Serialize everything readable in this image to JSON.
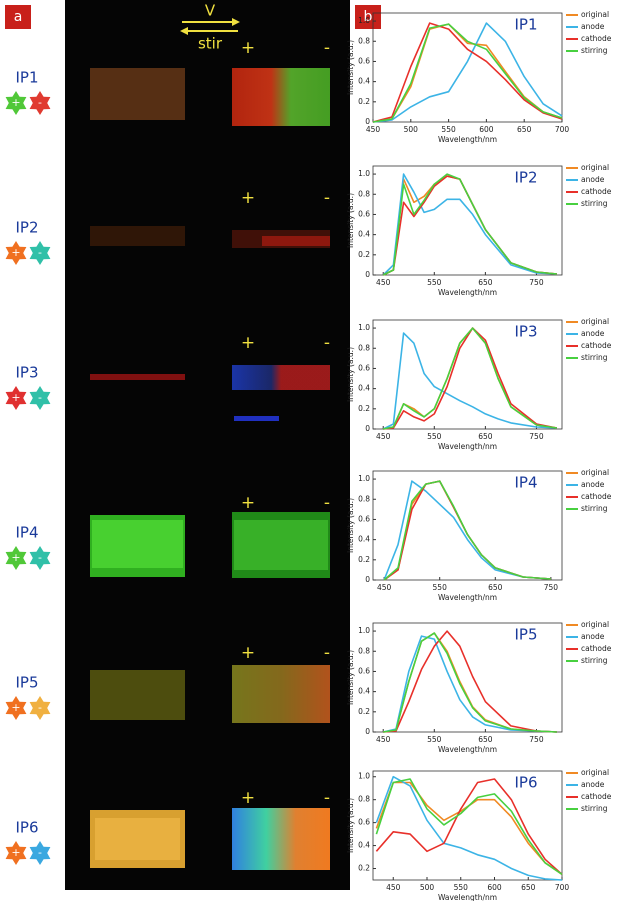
{
  "panel_labels": [
    "a",
    "b"
  ],
  "direction_labels": [
    "V",
    "stir"
  ],
  "samples": [
    "IP1",
    "IP2",
    "IP3",
    "IP4",
    "IP5",
    "IP6"
  ],
  "electrode_signs": [
    "+",
    "-"
  ],
  "chart_data": [
    {
      "type": "line",
      "annotation": "IP1",
      "xlabel": "Wavelength/nm",
      "ylabel": "Intensity (a.u.)",
      "legend": "outside-right",
      "xlim": [
        450,
        700
      ],
      "ylim": [
        0,
        1.08
      ],
      "xticks": [
        450,
        500,
        550,
        600,
        650,
        700
      ],
      "yticks": [
        0,
        0.2,
        0.4,
        0.6,
        0.8,
        {
          "value": 1,
          "label": "1.0"
        }
      ],
      "x": [
        450,
        475,
        500,
        525,
        550,
        575,
        600,
        625,
        650,
        675,
        700
      ],
      "series": [
        {
          "name": "original",
          "color": "#f08a24",
          "values": [
            0,
            0.03,
            0.35,
            0.92,
            0.97,
            0.78,
            0.76,
            0.5,
            0.25,
            0.1,
            0.04
          ]
        },
        {
          "name": "anode",
          "color": "#3cb4e6",
          "values": [
            0,
            0.02,
            0.15,
            0.25,
            0.3,
            0.6,
            0.98,
            0.8,
            0.45,
            0.18,
            0.06
          ]
        },
        {
          "name": "cathode",
          "color": "#e8302a",
          "values": [
            0,
            0.05,
            0.55,
            0.98,
            0.92,
            0.72,
            0.6,
            0.42,
            0.22,
            0.09,
            0.03
          ]
        },
        {
          "name": "stirring",
          "color": "#48d040",
          "values": [
            0,
            0.03,
            0.38,
            0.93,
            0.97,
            0.8,
            0.72,
            0.48,
            0.24,
            0.1,
            0.04
          ]
        }
      ]
    },
    {
      "type": "line",
      "annotation": "IP2",
      "xlabel": "Wavelength/nm",
      "ylabel": "Intensity (a.u.)",
      "legend": "outside-right",
      "xlim": [
        430,
        800
      ],
      "ylim": [
        0,
        1.08
      ],
      "xticks": [
        450,
        550,
        650,
        750
      ],
      "yticks": [
        0,
        0.2,
        0.4,
        0.6,
        0.8,
        {
          "value": 1,
          "label": "1.0"
        }
      ],
      "x": [
        450,
        470,
        490,
        510,
        530,
        550,
        575,
        600,
        625,
        650,
        700,
        750,
        790
      ],
      "series": [
        {
          "name": "original",
          "color": "#f08a24",
          "values": [
            0,
            0.05,
            0.95,
            0.72,
            0.78,
            0.9,
            0.98,
            0.95,
            0.7,
            0.45,
            0.12,
            0.03,
            0.01
          ]
        },
        {
          "name": "anode",
          "color": "#3cb4e6",
          "values": [
            0,
            0.1,
            1.0,
            0.82,
            0.62,
            0.65,
            0.75,
            0.75,
            0.6,
            0.4,
            0.1,
            0.02,
            0.01
          ]
        },
        {
          "name": "cathode",
          "color": "#e8302a",
          "values": [
            0,
            0.05,
            0.72,
            0.58,
            0.72,
            0.88,
            0.98,
            0.95,
            0.7,
            0.45,
            0.12,
            0.03,
            0.01
          ]
        },
        {
          "name": "stirring",
          "color": "#48d040",
          "values": [
            0,
            0.05,
            0.9,
            0.6,
            0.74,
            0.9,
            1.0,
            0.95,
            0.7,
            0.45,
            0.12,
            0.03,
            0.01
          ]
        }
      ]
    },
    {
      "type": "line",
      "annotation": "IP3",
      "xlabel": "Wavelength/nm",
      "ylabel": "Intensity (a.u.)",
      "legend": "outside-right",
      "xlim": [
        430,
        800
      ],
      "ylim": [
        0,
        1.08
      ],
      "xticks": [
        450,
        550,
        650,
        750
      ],
      "yticks": [
        0,
        0.2,
        0.4,
        0.6,
        0.8,
        {
          "value": 1,
          "label": "1.0"
        }
      ],
      "x": [
        450,
        470,
        490,
        510,
        530,
        550,
        575,
        600,
        625,
        650,
        675,
        700,
        750,
        790
      ],
      "series": [
        {
          "name": "original",
          "color": "#f08a24",
          "values": [
            0,
            0.02,
            0.25,
            0.2,
            0.12,
            0.2,
            0.5,
            0.85,
            1.0,
            0.85,
            0.5,
            0.22,
            0.04,
            0.01
          ]
        },
        {
          "name": "anode",
          "color": "#3cb4e6",
          "values": [
            0,
            0.05,
            0.95,
            0.85,
            0.55,
            0.42,
            0.35,
            0.28,
            0.22,
            0.15,
            0.1,
            0.06,
            0.02,
            0.01
          ]
        },
        {
          "name": "cathode",
          "color": "#e8302a",
          "values": [
            0,
            0.01,
            0.18,
            0.12,
            0.08,
            0.15,
            0.42,
            0.8,
            1.0,
            0.88,
            0.55,
            0.25,
            0.05,
            0.01
          ]
        },
        {
          "name": "stirring",
          "color": "#48d040",
          "values": [
            0,
            0.02,
            0.25,
            0.18,
            0.12,
            0.2,
            0.5,
            0.85,
            1.0,
            0.85,
            0.5,
            0.22,
            0.04,
            0.01
          ]
        }
      ]
    },
    {
      "type": "line",
      "annotation": "IP4",
      "xlabel": "Wavelength/nm",
      "ylabel": "Intensity (a.u.)",
      "legend": "outside-right",
      "xlim": [
        430,
        770
      ],
      "ylim": [
        0,
        1.08
      ],
      "xticks": [
        450,
        550,
        650,
        750
      ],
      "yticks": [
        0,
        0.2,
        0.4,
        0.6,
        0.8,
        {
          "value": 1,
          "label": "1.0"
        }
      ],
      "x": [
        450,
        475,
        500,
        525,
        550,
        575,
        600,
        625,
        650,
        700,
        750
      ],
      "series": [
        {
          "name": "original",
          "color": "#f08a24",
          "values": [
            0,
            0.1,
            0.75,
            0.95,
            0.98,
            0.72,
            0.45,
            0.25,
            0.12,
            0.03,
            0.01
          ]
        },
        {
          "name": "anode",
          "color": "#3cb4e6",
          "values": [
            0,
            0.35,
            0.98,
            0.88,
            0.75,
            0.62,
            0.4,
            0.22,
            0.1,
            0.03,
            0.01
          ]
        },
        {
          "name": "cathode",
          "color": "#e8302a",
          "values": [
            0,
            0.1,
            0.7,
            0.95,
            0.98,
            0.72,
            0.45,
            0.25,
            0.12,
            0.03,
            0.01
          ]
        },
        {
          "name": "stirring",
          "color": "#48d040",
          "values": [
            0,
            0.12,
            0.78,
            0.95,
            0.98,
            0.73,
            0.45,
            0.25,
            0.12,
            0.03,
            0.01
          ]
        }
      ]
    },
    {
      "type": "line",
      "annotation": "IP5",
      "xlabel": "Wavelength/nm",
      "ylabel": "Intensity (a.u.)",
      "legend": "outside-right",
      "xlim": [
        430,
        800
      ],
      "ylim": [
        0,
        1.08
      ],
      "xticks": [
        450,
        550,
        650,
        750
      ],
      "yticks": [
        0,
        0.2,
        0.4,
        0.6,
        0.8,
        {
          "value": 1,
          "label": "1.0"
        }
      ],
      "x": [
        450,
        475,
        500,
        525,
        550,
        575,
        600,
        625,
        650,
        700,
        750,
        790
      ],
      "series": [
        {
          "name": "original",
          "color": "#f08a24",
          "values": [
            0,
            0.02,
            0.5,
            0.9,
            0.98,
            0.8,
            0.5,
            0.25,
            0.12,
            0.03,
            0.01,
            0
          ]
        },
        {
          "name": "anode",
          "color": "#3cb4e6",
          "values": [
            0,
            0.03,
            0.6,
            0.95,
            0.92,
            0.6,
            0.32,
            0.15,
            0.07,
            0.02,
            0.01,
            0
          ]
        },
        {
          "name": "cathode",
          "color": "#e8302a",
          "values": [
            0,
            0.01,
            0.3,
            0.62,
            0.85,
            1.0,
            0.85,
            0.55,
            0.3,
            0.06,
            0.01,
            0
          ]
        },
        {
          "name": "stirring",
          "color": "#48d040",
          "values": [
            0,
            0.02,
            0.5,
            0.9,
            0.98,
            0.78,
            0.48,
            0.24,
            0.11,
            0.03,
            0.01,
            0
          ]
        }
      ]
    },
    {
      "type": "line",
      "annotation": "IP6",
      "xlabel": "Wavelength/nm",
      "ylabel": "Intensity (a.u.)",
      "legend": "outside-right",
      "xlim": [
        420,
        700
      ],
      "ylim": [
        0.1,
        1.05
      ],
      "xticks": [
        450,
        500,
        550,
        600,
        650,
        700
      ],
      "yticks": [
        0.2,
        0.4,
        0.6,
        0.8,
        {
          "value": 1,
          "label": "1.0"
        }
      ],
      "x": [
        425,
        450,
        475,
        500,
        525,
        550,
        575,
        600,
        625,
        650,
        675,
        700
      ],
      "series": [
        {
          "name": "original",
          "color": "#f08a24",
          "values": [
            0.55,
            0.95,
            0.95,
            0.75,
            0.62,
            0.7,
            0.8,
            0.8,
            0.65,
            0.42,
            0.25,
            0.15
          ]
        },
        {
          "name": "anode",
          "color": "#3cb4e6",
          "values": [
            0.6,
            1.0,
            0.92,
            0.62,
            0.42,
            0.38,
            0.32,
            0.28,
            0.2,
            0.14,
            0.11,
            0.1
          ]
        },
        {
          "name": "cathode",
          "color": "#e8302a",
          "values": [
            0.35,
            0.52,
            0.5,
            0.35,
            0.42,
            0.72,
            0.95,
            0.98,
            0.8,
            0.5,
            0.28,
            0.15
          ]
        },
        {
          "name": "stirring",
          "color": "#48d040",
          "values": [
            0.5,
            0.95,
            0.98,
            0.72,
            0.58,
            0.68,
            0.82,
            0.85,
            0.7,
            0.45,
            0.25,
            0.15
          ]
        }
      ]
    }
  ]
}
